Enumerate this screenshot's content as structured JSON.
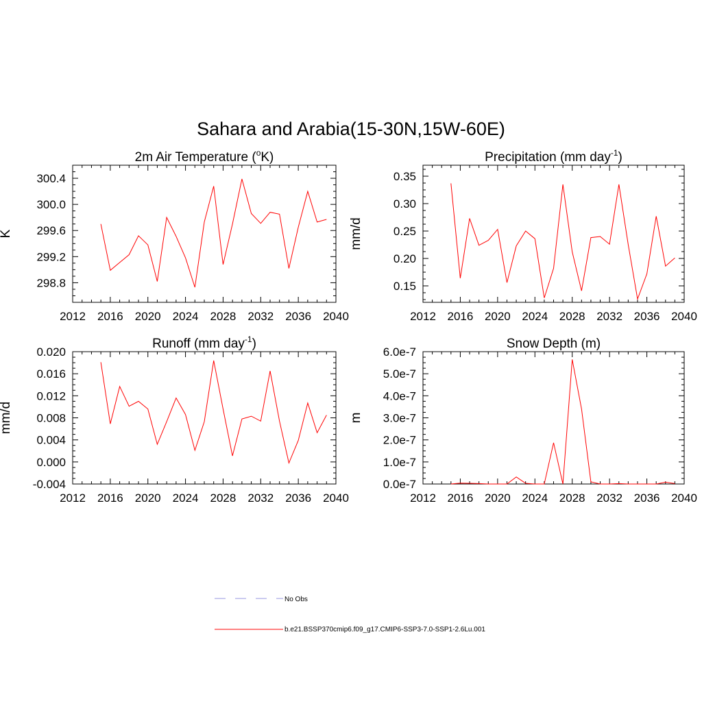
{
  "figure": {
    "title": "Sahara and Arabia(15-30N,15W-60E)"
  },
  "chart_data": [
    {
      "type": "line",
      "title": "2m Air Temperature (oK)",
      "title_parts": {
        "base": "2m Air Temperature (",
        "sup": "o",
        "tail": "K)"
      },
      "ylabel": "K",
      "xlabel": "",
      "xlim": [
        2012,
        2040
      ],
      "ylim": [
        298.5,
        300.6
      ],
      "x_ticks": [
        2012,
        2016,
        2020,
        2024,
        2028,
        2032,
        2036,
        2040
      ],
      "y_ticks": [
        298.8,
        299.2,
        299.6,
        300.0,
        300.4
      ],
      "y_tick_labels": [
        "298.8",
        "299.2",
        "299.6",
        "300.0",
        "300.4"
      ],
      "series": [
        {
          "color": "#ff0000",
          "x": [
            2015,
            2016,
            2017,
            2018,
            2019,
            2020,
            2021,
            2022,
            2023,
            2024,
            2025,
            2026,
            2027,
            2028,
            2029,
            2030,
            2031,
            2032,
            2033,
            2034,
            2035,
            2036,
            2037,
            2038,
            2039
          ],
          "y": [
            299.7,
            298.99,
            299.11,
            299.23,
            299.52,
            299.38,
            298.82,
            299.8,
            299.51,
            299.18,
            298.73,
            299.73,
            300.28,
            299.08,
            299.7,
            300.39,
            299.86,
            299.71,
            299.88,
            299.85,
            299.02,
            299.65,
            300.2,
            299.73,
            299.77
          ]
        }
      ]
    },
    {
      "type": "line",
      "title": "Precipitation (mm day-1)",
      "title_parts": {
        "base": "Precipitation (mm day",
        "sup": "-1",
        "tail": ")"
      },
      "ylabel": "mm/d",
      "xlabel": "",
      "xlim": [
        2012,
        2040
      ],
      "ylim": [
        0.12,
        0.37
      ],
      "x_ticks": [
        2012,
        2016,
        2020,
        2024,
        2028,
        2032,
        2036,
        2040
      ],
      "y_ticks": [
        0.15,
        0.2,
        0.25,
        0.3,
        0.35
      ],
      "y_tick_labels": [
        "0.15",
        "0.20",
        "0.25",
        "0.30",
        "0.35"
      ],
      "series": [
        {
          "color": "#ff0000",
          "x": [
            2015,
            2016,
            2017,
            2018,
            2019,
            2020,
            2021,
            2022,
            2023,
            2024,
            2025,
            2026,
            2027,
            2028,
            2029,
            2030,
            2031,
            2032,
            2033,
            2034,
            2035,
            2036,
            2037,
            2038,
            2039
          ],
          "y": [
            0.337,
            0.164,
            0.273,
            0.224,
            0.233,
            0.253,
            0.156,
            0.223,
            0.25,
            0.236,
            0.128,
            0.182,
            0.335,
            0.212,
            0.141,
            0.238,
            0.24,
            0.226,
            0.335,
            0.225,
            0.126,
            0.172,
            0.277,
            0.186,
            0.201
          ]
        }
      ]
    },
    {
      "type": "line",
      "title": "Runoff (mm day-1)",
      "title_parts": {
        "base": "Runoff (mm day",
        "sup": "-1",
        "tail": ")"
      },
      "ylabel": "mm/d",
      "xlabel": "",
      "xlim": [
        2012,
        2040
      ],
      "ylim": [
        -0.004,
        0.02
      ],
      "x_ticks": [
        2012,
        2016,
        2020,
        2024,
        2028,
        2032,
        2036,
        2040
      ],
      "y_ticks": [
        -0.004,
        0.0,
        0.004,
        0.008,
        0.012,
        0.016,
        0.02
      ],
      "y_tick_labels": [
        "-0.004",
        "0.000",
        "0.004",
        "0.008",
        "0.012",
        "0.016",
        "0.020"
      ],
      "series": [
        {
          "color": "#ff0000",
          "x": [
            2015,
            2016,
            2017,
            2018,
            2019,
            2020,
            2021,
            2022,
            2023,
            2024,
            2025,
            2026,
            2027,
            2028,
            2029,
            2030,
            2031,
            2032,
            2033,
            2034,
            2035,
            2036,
            2037,
            2038,
            2039
          ],
          "y": [
            0.0181,
            0.0069,
            0.0137,
            0.0101,
            0.011,
            0.0096,
            0.0032,
            0.0073,
            0.0116,
            0.0086,
            0.0021,
            0.0073,
            0.0184,
            0.0096,
            0.0011,
            0.0078,
            0.0083,
            0.0074,
            0.0165,
            0.0074,
            -0.0002,
            0.0039,
            0.0107,
            0.0053,
            0.0085
          ]
        }
      ]
    },
    {
      "type": "line",
      "title": "Snow Depth (m)",
      "title_parts": {
        "base": "Snow Depth (m)",
        "sup": "",
        "tail": ""
      },
      "ylabel": "m",
      "xlabel": "",
      "xlim": [
        2012,
        2040
      ],
      "ylim": [
        0,
        6e-07
      ],
      "x_ticks": [
        2012,
        2016,
        2020,
        2024,
        2028,
        2032,
        2036,
        2040
      ],
      "y_ticks": [
        0,
        1e-07,
        2e-07,
        3e-07,
        4e-07,
        5e-07,
        6e-07
      ],
      "y_tick_labels": [
        "0.0e-7",
        "1.0e-7",
        "2.0e-7",
        "3.0e-7",
        "4.0e-7",
        "5.0e-7",
        "6.0e-7"
      ],
      "series": [
        {
          "color": "#ff0000",
          "x": [
            2015,
            2016,
            2017,
            2018,
            2019,
            2020,
            2021,
            2022,
            2023,
            2024,
            2025,
            2026,
            2027,
            2028,
            2029,
            2030,
            2031,
            2032,
            2033,
            2034,
            2035,
            2036,
            2037,
            2038,
            2039
          ],
          "y": [
            0,
            4e-09,
            3e-09,
            2e-09,
            0,
            0,
            0,
            3.2e-08,
            3e-09,
            0,
            0,
            1.87e-07,
            0,
            5.65e-07,
            3.4e-07,
            1e-08,
            0,
            0,
            2e-09,
            0,
            0,
            0,
            0,
            8e-09,
            2e-09
          ]
        }
      ]
    }
  ],
  "legend": {
    "items": [
      {
        "label": "No Obs",
        "color": "#9a9ae0",
        "style": "dashed"
      },
      {
        "label": "b.e21.BSSP370cmip6.f09_g17.CMIP6-SSP3-7.0-SSP1-2.6Lu.001",
        "color": "#ff0000",
        "style": "solid"
      }
    ]
  }
}
